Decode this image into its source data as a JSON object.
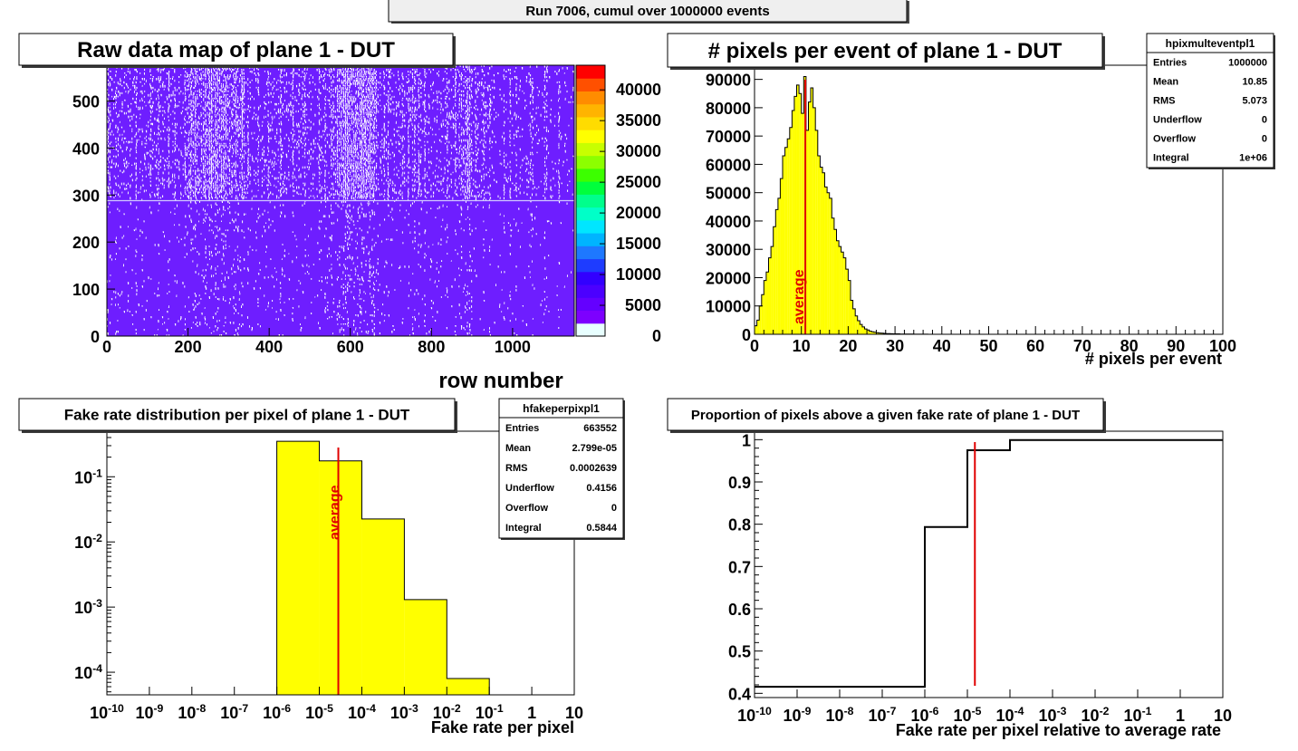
{
  "header": {
    "title": "Run 7006, cumul over 1000000 events"
  },
  "colors": {
    "map_bg": "#6e1eff",
    "map_hit": "#ffffff",
    "hist_fill": "#ffff00",
    "average_line": "#e00000",
    "palette": [
      "#e8ffff",
      "#7d00ff",
      "#6400ff",
      "#4b00ff",
      "#3200ff",
      "#1e3cff",
      "#1e78ff",
      "#00b4ff",
      "#00e6ff",
      "#00ffc8",
      "#00ff8c",
      "#00ff3c",
      "#3cff00",
      "#8cff00",
      "#c8ff00",
      "#ffff00",
      "#ffdc00",
      "#ffb400",
      "#ff8c00",
      "#ff5000",
      "#ff0000"
    ]
  },
  "stats_hpix": {
    "name": "hpixmulteventpl1",
    "rows": [
      {
        "label": "Entries",
        "value": "1000000"
      },
      {
        "label": "Mean",
        "value": "10.85"
      },
      {
        "label": "RMS",
        "value": "5.073"
      },
      {
        "label": "Underflow",
        "value": "0"
      },
      {
        "label": "Overflow",
        "value": "0"
      },
      {
        "label": "Integral",
        "value": "1e+06"
      }
    ]
  },
  "stats_fake": {
    "name": "hfakeperpixpl1",
    "rows": [
      {
        "label": "Entries",
        "value": "663552"
      },
      {
        "label": "Mean",
        "value": "2.799e-05"
      },
      {
        "label": "RMS",
        "value": "0.0002639"
      },
      {
        "label": "Underflow",
        "value": "0.4156"
      },
      {
        "label": "Overflow",
        "value": "0"
      },
      {
        "label": "Integral",
        "value": "0.5844"
      }
    ]
  },
  "chart_data": [
    {
      "type": "heatmap",
      "title": "Raw data map of plane 1 - DUT",
      "xlabel": "row number",
      "ylabel": "",
      "xlim": [
        0,
        1152
      ],
      "ylim": [
        0,
        576
      ],
      "x_ticks": [
        "0",
        "200",
        "400",
        "600",
        "800",
        "1000"
      ],
      "y_ticks": [
        "0",
        "100",
        "200",
        "300",
        "400",
        "500"
      ],
      "z_range": [
        0,
        44000
      ],
      "z_ticks": [
        "0",
        "5000",
        "10000",
        "15000",
        "20000",
        "25000",
        "30000",
        "35000",
        "40000"
      ],
      "background_level": 0,
      "notes": [
        "upper half (rows above ~288) densely populated with hits",
        "hot columns near 200-340 and 570-660"
      ]
    },
    {
      "type": "bar",
      "title": "# pixels per event of plane 1 - DUT",
      "xlabel": "# pixels per event",
      "ylabel": "",
      "xlim": [
        0,
        100
      ],
      "ylim": [
        0,
        95000
      ],
      "x_ticks": [
        "0",
        "10",
        "20",
        "30",
        "40",
        "50",
        "60",
        "70",
        "80",
        "90",
        "100"
      ],
      "y_ticks": [
        "0",
        "10000",
        "20000",
        "30000",
        "40000",
        "50000",
        "60000",
        "70000",
        "80000",
        "90000"
      ],
      "bin_width": 0.5,
      "x": [
        0,
        0.5,
        1,
        1.5,
        2,
        2.5,
        3,
        3.5,
        4,
        4.5,
        5,
        5.5,
        6,
        6.5,
        7,
        7.5,
        8,
        8.5,
        9,
        9.5,
        10,
        10.5,
        11,
        11.5,
        12,
        12.5,
        13,
        13.5,
        14,
        14.5,
        15,
        15.5,
        16,
        16.5,
        17,
        17.5,
        18,
        18.5,
        19,
        19.5,
        20,
        20.5,
        21,
        21.5,
        22,
        22.5,
        23,
        23.5,
        24,
        24.5,
        25,
        25.5,
        26,
        26.5,
        27,
        27.5,
        28,
        28.5,
        29,
        29.5,
        30,
        31,
        32,
        33,
        34,
        35,
        36,
        37,
        38,
        39,
        40
      ],
      "values": [
        3000,
        5000,
        10000,
        14000,
        19000,
        22000,
        27000,
        31000,
        38000,
        44000,
        48000,
        55000,
        63000,
        66000,
        69000,
        73000,
        79000,
        84000,
        88000,
        85000,
        78000,
        91000,
        72000,
        82000,
        87000,
        80000,
        72000,
        63000,
        59000,
        57000,
        52000,
        50000,
        48000,
        41000,
        37000,
        33000,
        31000,
        29000,
        27000,
        23000,
        19000,
        12000,
        9000,
        6500,
        4800,
        3500,
        2600,
        1900,
        1500,
        1100,
        900,
        700,
        550,
        450,
        380,
        320,
        270,
        230,
        200,
        170,
        150,
        110,
        80,
        60,
        40,
        30,
        20,
        15,
        10,
        5,
        3
      ],
      "average": 10.85,
      "annotation": "average"
    },
    {
      "type": "bar",
      "title": "Fake rate distribution per pixel of plane 1 - DUT",
      "xlabel": "Fake rate per pixel",
      "ylabel": "",
      "x_scale": "log",
      "y_scale": "log",
      "xlim": [
        1e-10,
        10
      ],
      "ylim": [
        4.5e-05,
        0.5
      ],
      "x_ticks": [
        "10^-10",
        "10^-9",
        "10^-8",
        "10^-7",
        "10^-6",
        "10^-5",
        "10^-4",
        "10^-3",
        "10^-2",
        "10^-1",
        "1",
        "10"
      ],
      "y_ticks": [
        "10^-4",
        "10^-3",
        "10^-2",
        "10^-1"
      ],
      "bins": [
        [
          1e-06,
          1e-05
        ],
        [
          1e-05,
          0.0001
        ],
        [
          0.0001,
          0.001
        ],
        [
          0.001,
          0.01
        ],
        [
          0.01,
          0.1
        ]
      ],
      "values": [
        0.35,
        0.175,
        0.0225,
        0.0013,
        8e-05
      ],
      "average": 2.799e-05,
      "annotation": "average"
    },
    {
      "type": "line",
      "title": "Proportion of pixels above a given fake rate of plane 1 - DUT",
      "xlabel": "Fake rate per pixel relative to average rate",
      "ylabel": "",
      "x_scale": "log",
      "xlim": [
        1e-10,
        10
      ],
      "ylim": [
        0.39,
        1.02
      ],
      "x_ticks": [
        "10^-10",
        "10^-9",
        "10^-8",
        "10^-7",
        "10^-6",
        "10^-5",
        "10^-4",
        "10^-3",
        "10^-2",
        "10^-1",
        "1",
        "10"
      ],
      "y_ticks": [
        "0.4",
        "0.5",
        "0.6",
        "0.7",
        "0.8",
        "0.9",
        "1"
      ],
      "x": [
        1e-10,
        1e-06,
        1e-06,
        1e-05,
        1e-05,
        0.0001,
        0.0001,
        10
      ],
      "values": [
        0.4156,
        0.4156,
        0.7935,
        0.7935,
        0.975,
        0.975,
        0.999,
        0.999
      ],
      "average_x": 1.5e-05
    }
  ]
}
